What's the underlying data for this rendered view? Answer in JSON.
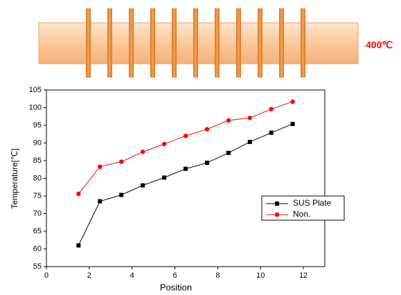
{
  "chart_data": {
    "type": "line",
    "annotations": [
      "400℃"
    ],
    "xlabel": "Position",
    "ylabel": "Temperature[℃]",
    "x": [
      1.5,
      2.5,
      3.5,
      4.5,
      5.5,
      6.5,
      7.5,
      8.5,
      9.5,
      10.5,
      11.5
    ],
    "series": [
      {
        "name": "SUS Plate",
        "color": "#000000",
        "marker": "square",
        "values": [
          61,
          73.5,
          75.3,
          78,
          80.2,
          82.7,
          84.4,
          87.2,
          90.3,
          92.9,
          95.4
        ]
      },
      {
        "name": "Non.",
        "color": "#ff0000",
        "marker": "circle",
        "values": [
          75.6,
          83.3,
          84.7,
          87.5,
          89.7,
          92,
          93.9,
          96.4,
          97.1,
          99.6,
          101.7
        ]
      }
    ],
    "xlim": [
      0,
      13
    ],
    "xticks": [
      0,
      2,
      4,
      6,
      8,
      10,
      12
    ],
    "ylim": [
      55,
      105
    ],
    "yticks": [
      55,
      60,
      65,
      70,
      75,
      80,
      85,
      90,
      95,
      100,
      105
    ],
    "grid": false,
    "legend": "right"
  }
}
